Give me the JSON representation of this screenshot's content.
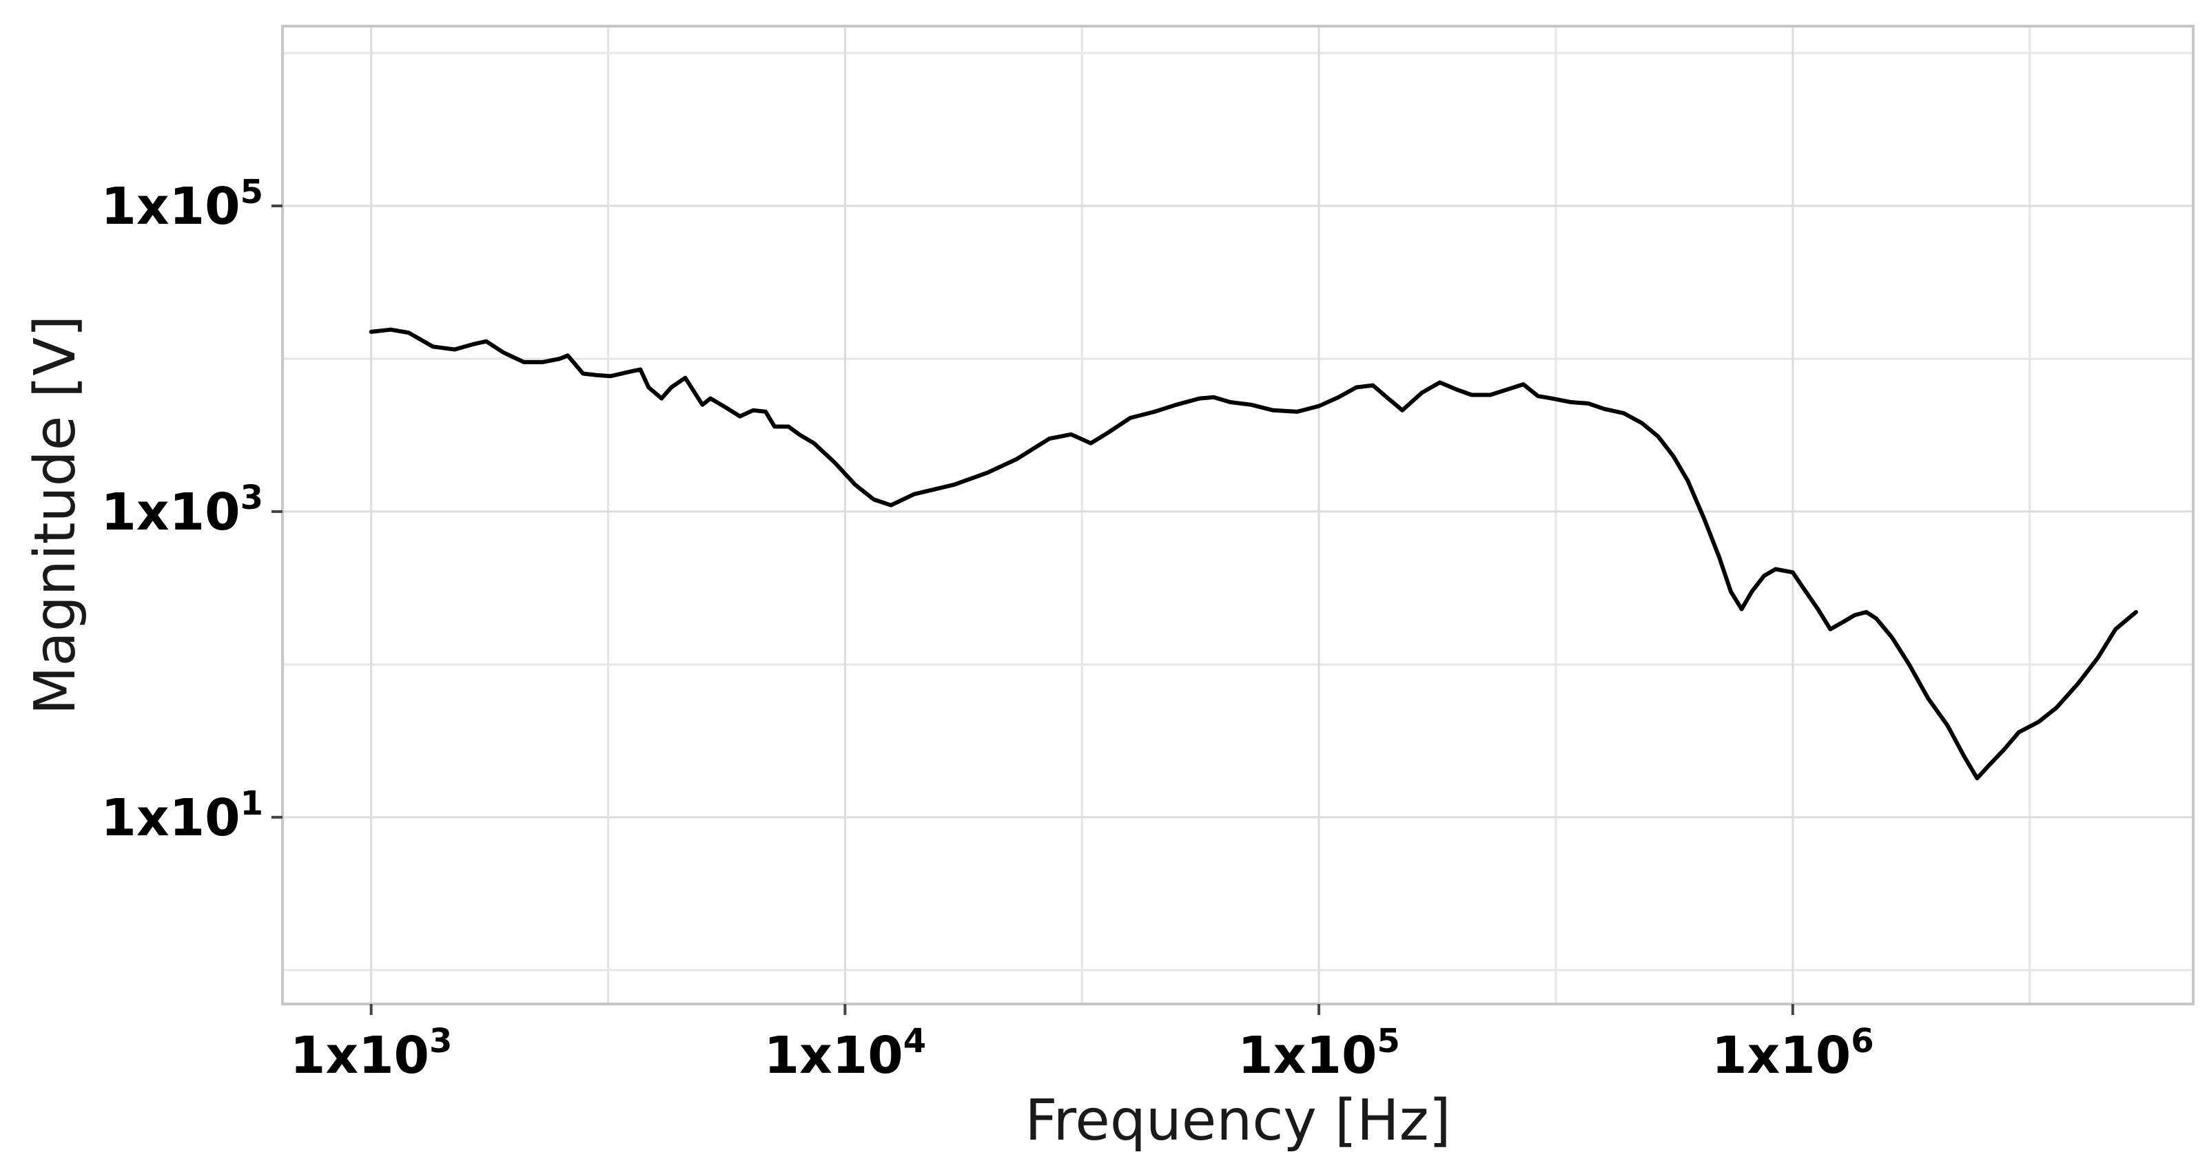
{
  "chart_data": {
    "type": "line",
    "title": "",
    "xlabel": "Frequency [Hz]",
    "ylabel": "Magnitude [V]",
    "x_scale": "log",
    "y_scale": "log",
    "xlim": [
      650,
      7000000
    ],
    "ylim": [
      0.6,
      1500000
    ],
    "grid": true,
    "legend": "none",
    "x_ticks": [
      {
        "value": 1000,
        "base": "1x10",
        "exp": "3"
      },
      {
        "value": 10000,
        "base": "1x10",
        "exp": "4"
      },
      {
        "value": 100000,
        "base": "1x10",
        "exp": "5"
      },
      {
        "value": 1000000,
        "base": "1x10",
        "exp": "6"
      }
    ],
    "y_ticks": [
      {
        "value": 10,
        "base": "1x10",
        "exp": "1"
      },
      {
        "value": 1000,
        "base": "1x10",
        "exp": "3"
      },
      {
        "value": 100000,
        "base": "1x10",
        "exp": "5"
      }
    ],
    "x_minor_gridlines": [
      3162,
      31623,
      316228,
      3162278
    ],
    "y_minor_gridlines": [
      1,
      100,
      10000,
      1000000
    ],
    "series": [
      {
        "color": "#000000",
        "points": [
          [
            1000,
            15000
          ],
          [
            1100,
            15500
          ],
          [
            1200,
            14800
          ],
          [
            1350,
            12000
          ],
          [
            1500,
            11500
          ],
          [
            1650,
            12500
          ],
          [
            1750,
            13000
          ],
          [
            1900,
            11000
          ],
          [
            2100,
            9500
          ],
          [
            2300,
            9500
          ],
          [
            2500,
            10000
          ],
          [
            2600,
            10500
          ],
          [
            2800,
            8000
          ],
          [
            3000,
            7800
          ],
          [
            3200,
            7700
          ],
          [
            3500,
            8200
          ],
          [
            3700,
            8500
          ],
          [
            3850,
            6500
          ],
          [
            4100,
            5500
          ],
          [
            4300,
            6500
          ],
          [
            4600,
            7500
          ],
          [
            5000,
            5000
          ],
          [
            5200,
            5500
          ],
          [
            5600,
            4800
          ],
          [
            6000,
            4200
          ],
          [
            6400,
            4600
          ],
          [
            6800,
            4500
          ],
          [
            7100,
            3600
          ],
          [
            7600,
            3600
          ],
          [
            8000,
            3200
          ],
          [
            8600,
            2800
          ],
          [
            9500,
            2100
          ],
          [
            10500,
            1500
          ],
          [
            11500,
            1200
          ],
          [
            12500,
            1100
          ],
          [
            14000,
            1300
          ],
          [
            17000,
            1500
          ],
          [
            20000,
            1800
          ],
          [
            23000,
            2200
          ],
          [
            27000,
            3000
          ],
          [
            30000,
            3200
          ],
          [
            33000,
            2800
          ],
          [
            36000,
            3300
          ],
          [
            40000,
            4100
          ],
          [
            45000,
            4500
          ],
          [
            50000,
            5000
          ],
          [
            56000,
            5500
          ],
          [
            60000,
            5600
          ],
          [
            65000,
            5200
          ],
          [
            72000,
            5000
          ],
          [
            80000,
            4600
          ],
          [
            90000,
            4500
          ],
          [
            100000,
            4900
          ],
          [
            110000,
            5600
          ],
          [
            120000,
            6500
          ],
          [
            130000,
            6700
          ],
          [
            140000,
            5500
          ],
          [
            150000,
            4600
          ],
          [
            165000,
            6000
          ],
          [
            180000,
            7000
          ],
          [
            195000,
            6300
          ],
          [
            210000,
            5800
          ],
          [
            230000,
            5800
          ],
          [
            250000,
            6300
          ],
          [
            270000,
            6800
          ],
          [
            290000,
            5700
          ],
          [
            310000,
            5500
          ],
          [
            340000,
            5200
          ],
          [
            370000,
            5100
          ],
          [
            400000,
            4700
          ],
          [
            440000,
            4400
          ],
          [
            480000,
            3800
          ],
          [
            520000,
            3100
          ],
          [
            560000,
            2300
          ],
          [
            600000,
            1600
          ],
          [
            650000,
            900
          ],
          [
            700000,
            500
          ],
          [
            740000,
            300
          ],
          [
            780000,
            230
          ],
          [
            820000,
            300
          ],
          [
            870000,
            380
          ],
          [
            920000,
            420
          ],
          [
            1000000,
            400
          ],
          [
            1050000,
            320
          ],
          [
            1130000,
            230
          ],
          [
            1200000,
            170
          ],
          [
            1280000,
            190
          ],
          [
            1350000,
            210
          ],
          [
            1430000,
            220
          ],
          [
            1500000,
            200
          ],
          [
            1620000,
            150
          ],
          [
            1760000,
            100
          ],
          [
            1930000,
            60
          ],
          [
            2120000,
            40
          ],
          [
            2300000,
            25
          ],
          [
            2450000,
            18
          ],
          [
            2600000,
            22
          ],
          [
            2800000,
            28
          ],
          [
            3000000,
            36
          ],
          [
            3300000,
            42
          ],
          [
            3600000,
            52
          ],
          [
            4000000,
            75
          ],
          [
            4400000,
            110
          ],
          [
            4800000,
            170
          ],
          [
            5300000,
            220
          ]
        ]
      }
    ]
  }
}
